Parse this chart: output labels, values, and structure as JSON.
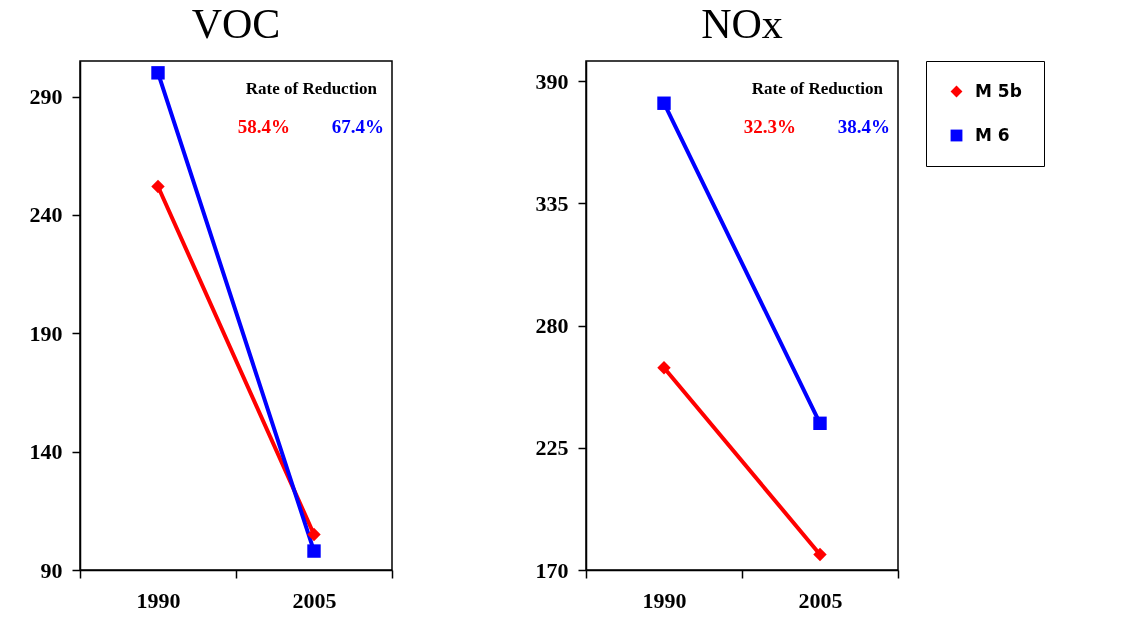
{
  "chart_data": [
    {
      "type": "line",
      "title": "VOC",
      "categories": [
        "1990",
        "2005"
      ],
      "ylim": [
        90,
        305
      ],
      "yticks": [
        90,
        140,
        190,
        240,
        290
      ],
      "grid": false,
      "legend": false,
      "annotations": [
        "Rate of Reduction",
        "58.4%",
        "67.4%"
      ],
      "series": [
        {
          "color": "#ff0000",
          "marker": "diamond",
          "values": [
            252,
            105
          ]
        },
        {
          "color": "#0000ff",
          "marker": "square",
          "values": [
            300,
            98
          ]
        }
      ]
    },
    {
      "type": "line",
      "title": "NOx",
      "categories": [
        "1990",
        "2005"
      ],
      "ylim": [
        170,
        399
      ],
      "yticks": [
        170,
        225,
        280,
        335,
        390
      ],
      "grid": false,
      "legend": "right",
      "annotations": [
        "Rate of Reduction",
        "32.3%",
        "38.4%"
      ],
      "series": [
        {
          "name": "M 5b",
          "color": "#ff0000",
          "marker": "diamond",
          "values": [
            261,
            177
          ]
        },
        {
          "name": "M 6",
          "color": "#0000ff",
          "marker": "square",
          "values": [
            380,
            236
          ]
        }
      ]
    }
  ]
}
